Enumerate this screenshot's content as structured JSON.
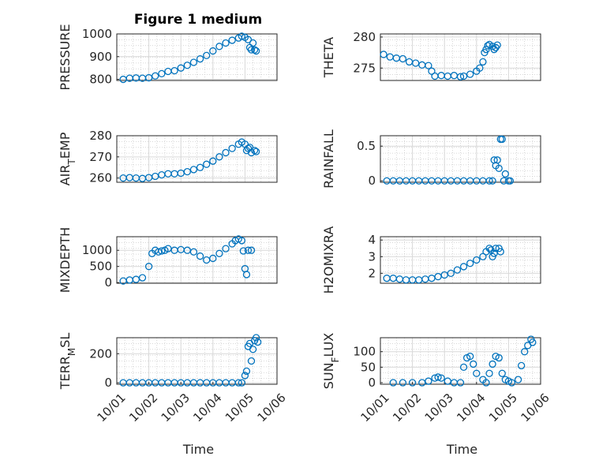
{
  "figure_title": "Figure 1 medium",
  "chart_data": [
    {
      "type": "scatter",
      "ylabel": "PRESSURE",
      "xlabel": "",
      "ylim": [
        795,
        1000
      ],
      "yticks": [
        800,
        900,
        1000
      ],
      "ytick_labels": [
        "800",
        "900",
        "1000"
      ],
      "xlim": [
        0,
        5
      ],
      "grid": true,
      "marker": "circle",
      "color": "#0072bd",
      "points": [
        [
          0.2,
          800
        ],
        [
          0.4,
          805
        ],
        [
          0.6,
          806
        ],
        [
          0.8,
          805
        ],
        [
          1.0,
          807
        ],
        [
          1.2,
          815
        ],
        [
          1.4,
          825
        ],
        [
          1.6,
          835
        ],
        [
          1.8,
          838
        ],
        [
          2.0,
          850
        ],
        [
          2.2,
          862
        ],
        [
          2.4,
          875
        ],
        [
          2.6,
          890
        ],
        [
          2.8,
          905
        ],
        [
          3.0,
          925
        ],
        [
          3.2,
          945
        ],
        [
          3.4,
          960
        ],
        [
          3.6,
          972
        ],
        [
          3.8,
          982
        ],
        [
          3.9,
          990
        ],
        [
          4.0,
          985
        ],
        [
          4.1,
          975
        ],
        [
          4.15,
          940
        ],
        [
          4.2,
          930
        ],
        [
          4.25,
          960
        ],
        [
          4.3,
          930
        ],
        [
          4.35,
          925
        ]
      ]
    },
    {
      "type": "scatter",
      "ylabel": "THETA",
      "xlabel": "",
      "ylim": [
        273,
        280.5
      ],
      "yticks": [
        275,
        280
      ],
      "ytick_labels": [
        "275",
        "280"
      ],
      "xlim": [
        0,
        5
      ],
      "grid": true,
      "marker": "circle",
      "color": "#0072bd",
      "points": [
        [
          0.1,
          277.2
        ],
        [
          0.3,
          276.8
        ],
        [
          0.5,
          276.6
        ],
        [
          0.7,
          276.5
        ],
        [
          0.9,
          276.0
        ],
        [
          1.1,
          275.8
        ],
        [
          1.3,
          275.5
        ],
        [
          1.5,
          275.4
        ],
        [
          1.6,
          274.5
        ],
        [
          1.7,
          273.7
        ],
        [
          1.9,
          273.8
        ],
        [
          2.1,
          273.7
        ],
        [
          2.3,
          273.8
        ],
        [
          2.5,
          273.6
        ],
        [
          2.6,
          273.7
        ],
        [
          2.8,
          274.0
        ],
        [
          3.0,
          274.5
        ],
        [
          3.1,
          275.0
        ],
        [
          3.2,
          276.0
        ],
        [
          3.25,
          277.5
        ],
        [
          3.3,
          278.0
        ],
        [
          3.35,
          278.6
        ],
        [
          3.4,
          278.8
        ],
        [
          3.5,
          278.5
        ],
        [
          3.55,
          278.0
        ],
        [
          3.6,
          278.3
        ],
        [
          3.65,
          278.7
        ]
      ]
    },
    {
      "type": "scatter",
      "ylabel": "AIR_TEMP",
      "xlabel": "",
      "ylim": [
        258,
        280
      ],
      "yticks": [
        260,
        270,
        280
      ],
      "ytick_labels": [
        "260",
        "270",
        "280"
      ],
      "xlim": [
        0,
        5
      ],
      "grid": true,
      "marker": "circle",
      "color": "#0072bd",
      "points": [
        [
          0.2,
          260
        ],
        [
          0.4,
          260.2
        ],
        [
          0.6,
          260
        ],
        [
          0.8,
          259.8
        ],
        [
          1.0,
          260.2
        ],
        [
          1.2,
          260.8
        ],
        [
          1.4,
          261.5
        ],
        [
          1.6,
          262
        ],
        [
          1.8,
          262
        ],
        [
          2.0,
          262.3
        ],
        [
          2.2,
          263
        ],
        [
          2.4,
          264
        ],
        [
          2.6,
          265
        ],
        [
          2.8,
          266.5
        ],
        [
          3.0,
          268
        ],
        [
          3.2,
          270
        ],
        [
          3.4,
          272
        ],
        [
          3.6,
          274
        ],
        [
          3.8,
          276
        ],
        [
          3.9,
          277
        ],
        [
          4.0,
          276
        ],
        [
          4.05,
          273
        ],
        [
          4.1,
          274
        ],
        [
          4.15,
          274.5
        ],
        [
          4.2,
          272
        ],
        [
          4.3,
          273
        ],
        [
          4.35,
          272.5
        ]
      ]
    },
    {
      "type": "scatter",
      "ylabel": "RAINFALL",
      "xlabel": "",
      "ylim": [
        -0.02,
        0.65
      ],
      "yticks": [
        0,
        0.5
      ],
      "ytick_labels": [
        "0",
        "0.5"
      ],
      "xlim": [
        0,
        5
      ],
      "grid": true,
      "marker": "circle",
      "color": "#0072bd",
      "points": [
        [
          0.2,
          0
        ],
        [
          0.4,
          0
        ],
        [
          0.6,
          0
        ],
        [
          0.8,
          0
        ],
        [
          1.0,
          0
        ],
        [
          1.2,
          0
        ],
        [
          1.4,
          0
        ],
        [
          1.6,
          0
        ],
        [
          1.8,
          0
        ],
        [
          2.0,
          0
        ],
        [
          2.2,
          0
        ],
        [
          2.4,
          0
        ],
        [
          2.6,
          0
        ],
        [
          2.8,
          0
        ],
        [
          3.0,
          0
        ],
        [
          3.2,
          0
        ],
        [
          3.4,
          0
        ],
        [
          3.5,
          0
        ],
        [
          3.55,
          0.3
        ],
        [
          3.6,
          0.22
        ],
        [
          3.65,
          0.3
        ],
        [
          3.7,
          0.18
        ],
        [
          3.75,
          0.6
        ],
        [
          3.8,
          0.6
        ],
        [
          3.85,
          0
        ],
        [
          3.9,
          0.1
        ],
        [
          4.0,
          0
        ],
        [
          4.05,
          0
        ]
      ]
    },
    {
      "type": "scatter",
      "ylabel": "MIXDEPTH",
      "xlabel": "",
      "ylim": [
        -20,
        1420
      ],
      "yticks": [
        0,
        500,
        1000
      ],
      "ytick_labels": [
        "0",
        "500",
        "1000"
      ],
      "xlim": [
        0,
        5
      ],
      "grid": true,
      "marker": "circle",
      "color": "#0072bd",
      "points": [
        [
          0.2,
          50
        ],
        [
          0.4,
          80
        ],
        [
          0.6,
          100
        ],
        [
          0.8,
          150
        ],
        [
          1.0,
          500
        ],
        [
          1.1,
          900
        ],
        [
          1.2,
          1000
        ],
        [
          1.3,
          950
        ],
        [
          1.4,
          980
        ],
        [
          1.5,
          1000
        ],
        [
          1.6,
          1050
        ],
        [
          1.8,
          1000
        ],
        [
          2.0,
          1020
        ],
        [
          2.2,
          1000
        ],
        [
          2.4,
          950
        ],
        [
          2.6,
          820
        ],
        [
          2.8,
          700
        ],
        [
          3.0,
          750
        ],
        [
          3.2,
          900
        ],
        [
          3.4,
          1050
        ],
        [
          3.6,
          1200
        ],
        [
          3.7,
          1300
        ],
        [
          3.8,
          1350
        ],
        [
          3.9,
          1300
        ],
        [
          3.95,
          980
        ],
        [
          4.0,
          430
        ],
        [
          4.05,
          250
        ],
        [
          4.1,
          1000
        ],
        [
          4.2,
          1000
        ]
      ]
    },
    {
      "type": "scatter",
      "ylabel": "H2OMIXRA",
      "xlabel": "",
      "ylim": [
        1.4,
        4.2
      ],
      "yticks": [
        2,
        3,
        4
      ],
      "ytick_labels": [
        "2",
        "3",
        "4"
      ],
      "xlim": [
        0,
        5
      ],
      "grid": true,
      "marker": "circle",
      "color": "#0072bd",
      "points": [
        [
          0.2,
          1.7
        ],
        [
          0.4,
          1.7
        ],
        [
          0.6,
          1.65
        ],
        [
          0.8,
          1.6
        ],
        [
          1.0,
          1.6
        ],
        [
          1.2,
          1.6
        ],
        [
          1.4,
          1.65
        ],
        [
          1.6,
          1.7
        ],
        [
          1.8,
          1.8
        ],
        [
          2.0,
          1.9
        ],
        [
          2.2,
          2.0
        ],
        [
          2.4,
          2.2
        ],
        [
          2.6,
          2.4
        ],
        [
          2.8,
          2.6
        ],
        [
          3.0,
          2.8
        ],
        [
          3.2,
          3.0
        ],
        [
          3.3,
          3.3
        ],
        [
          3.4,
          3.5
        ],
        [
          3.45,
          3.4
        ],
        [
          3.5,
          3.0
        ],
        [
          3.55,
          3.2
        ],
        [
          3.6,
          3.5
        ],
        [
          3.7,
          3.5
        ],
        [
          3.75,
          3.3
        ]
      ]
    },
    {
      "type": "scatter",
      "ylabel": "TERR_MSL",
      "xlabel": "Time",
      "ylim": [
        -10,
        310
      ],
      "yticks": [
        0,
        200
      ],
      "ytick_labels": [
        "0",
        "200"
      ],
      "xlim": [
        0,
        5
      ],
      "xticks": [
        0,
        1,
        2,
        3,
        4,
        5
      ],
      "xtick_labels": [
        "10/01",
        "10/02",
        "10/03",
        "10/04",
        "10/05",
        "10/06"
      ],
      "grid": true,
      "marker": "circle",
      "color": "#0072bd",
      "points": [
        [
          0.2,
          0
        ],
        [
          0.4,
          0
        ],
        [
          0.6,
          0
        ],
        [
          0.8,
          0
        ],
        [
          1.0,
          0
        ],
        [
          1.2,
          0
        ],
        [
          1.4,
          0
        ],
        [
          1.6,
          0
        ],
        [
          1.8,
          0
        ],
        [
          2.0,
          0
        ],
        [
          2.2,
          0
        ],
        [
          2.4,
          0
        ],
        [
          2.6,
          0
        ],
        [
          2.8,
          0
        ],
        [
          3.0,
          0
        ],
        [
          3.2,
          0
        ],
        [
          3.4,
          0
        ],
        [
          3.6,
          0
        ],
        [
          3.8,
          0
        ],
        [
          3.9,
          0
        ],
        [
          4.0,
          50
        ],
        [
          4.05,
          80
        ],
        [
          4.1,
          250
        ],
        [
          4.15,
          270
        ],
        [
          4.2,
          150
        ],
        [
          4.25,
          230
        ],
        [
          4.3,
          290
        ],
        [
          4.35,
          310
        ],
        [
          4.4,
          280
        ]
      ]
    },
    {
      "type": "scatter",
      "ylabel": "SUN_FLUX",
      "xlabel": "Time",
      "ylim": [
        -5,
        145
      ],
      "yticks": [
        0,
        50,
        100
      ],
      "ytick_labels": [
        "0",
        "50",
        "100"
      ],
      "xlim": [
        0,
        5
      ],
      "xticks": [
        0,
        1,
        2,
        3,
        4,
        5
      ],
      "xtick_labels": [
        "10/01",
        "10/02",
        "10/03",
        "10/04",
        "10/05",
        "10/06"
      ],
      "grid": true,
      "marker": "circle",
      "color": "#0072bd",
      "points": [
        [
          0.4,
          0
        ],
        [
          0.7,
          0
        ],
        [
          1.0,
          0
        ],
        [
          1.3,
          0
        ],
        [
          1.5,
          5
        ],
        [
          1.7,
          15
        ],
        [
          1.8,
          18
        ],
        [
          1.9,
          15
        ],
        [
          2.1,
          5
        ],
        [
          2.3,
          0
        ],
        [
          2.5,
          0
        ],
        [
          2.6,
          50
        ],
        [
          2.7,
          80
        ],
        [
          2.8,
          85
        ],
        [
          2.9,
          60
        ],
        [
          3.0,
          30
        ],
        [
          3.2,
          10
        ],
        [
          3.3,
          0
        ],
        [
          3.4,
          30
        ],
        [
          3.5,
          60
        ],
        [
          3.6,
          85
        ],
        [
          3.7,
          80
        ],
        [
          3.8,
          30
        ],
        [
          3.9,
          10
        ],
        [
          4.0,
          5
        ],
        [
          4.1,
          0
        ],
        [
          4.3,
          10
        ],
        [
          4.4,
          55
        ],
        [
          4.5,
          100
        ],
        [
          4.6,
          120
        ],
        [
          4.7,
          140
        ],
        [
          4.75,
          130
        ]
      ]
    }
  ]
}
